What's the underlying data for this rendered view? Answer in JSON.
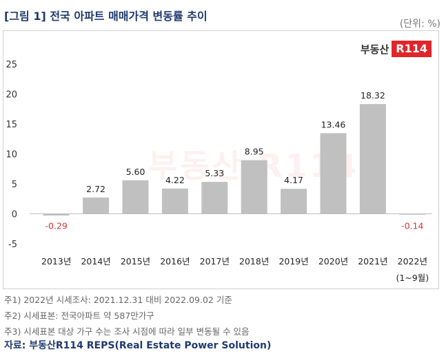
{
  "title": "[그림 1] 전국 아파트 매매가격 변동률 추이",
  "unit_label": "(단위: %)",
  "logo": {
    "text": "부동산",
    "badge": "R114"
  },
  "watermark": "부동산 R114",
  "chart_data": {
    "type": "bar",
    "categories": [
      "2013년",
      "2014년",
      "2015년",
      "2016년",
      "2017년",
      "2018년",
      "2019년",
      "2020년",
      "2021년",
      "2022년"
    ],
    "category_sublabels": [
      "",
      "",
      "",
      "",
      "",
      "",
      "",
      "",
      "",
      "(1~9월)"
    ],
    "values": [
      -0.29,
      2.72,
      5.6,
      4.22,
      5.33,
      8.95,
      4.17,
      13.46,
      18.32,
      -0.14
    ],
    "data_labels": [
      "-0.29",
      "2.72",
      "5.60",
      "4.22",
      "5.33",
      "8.95",
      "4.17",
      "13.46",
      "18.32",
      "-0.14"
    ],
    "yticks": [
      "-5",
      "0",
      "5",
      "10",
      "15",
      "20",
      "25"
    ],
    "ylim": [
      -5,
      25
    ],
    "grid": false,
    "bar_color": "#c0c0c0",
    "negative_label_color": "#e03030"
  },
  "notes": [
    "주1) 2022년 시세조사: 2021.12.31 대비 2022.09.02 기준",
    "주2) 시세표본: 전국아파트 약 587만가구",
    "주3) 시세표본 대상 가구 수는 조사 시점에 따라 일부 변동될 수 있음"
  ],
  "source": "자료: 부동산R114 REPS(Real Estate Power Solution)"
}
